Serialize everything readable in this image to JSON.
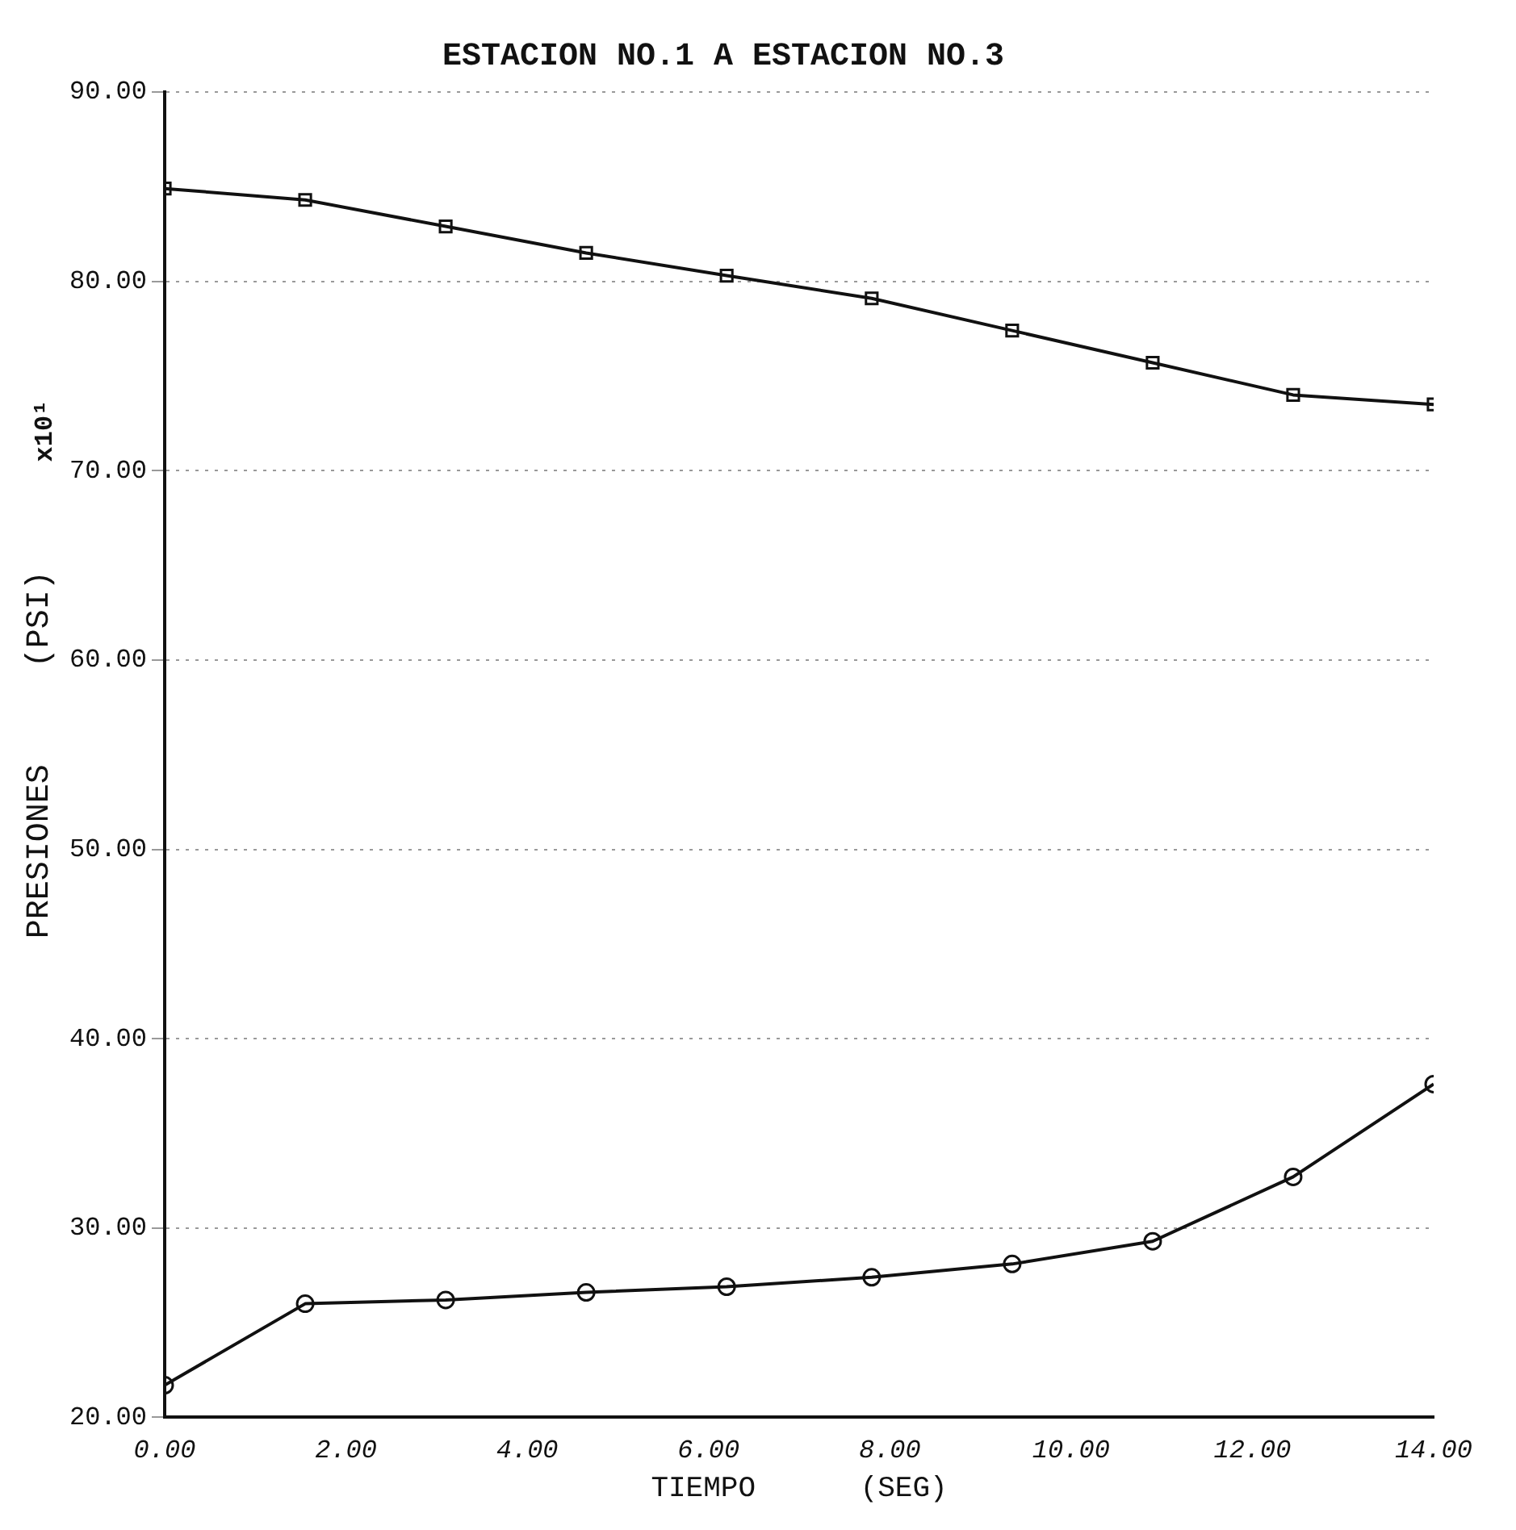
{
  "chart_data": {
    "type": "line",
    "title": "ESTACION NO.1 A ESTACION NO.3",
    "xlabel": "TIEMPO      (SEG)",
    "ylabel": "PRESIONES     (PSI)",
    "annotations": [
      "x10¹"
    ],
    "x": [
      0,
      1.55,
      3.1,
      4.65,
      6.2,
      7.8,
      9.35,
      10.9,
      12.45,
      14
    ],
    "series": [
      {
        "color": "#111111",
        "marker": "square",
        "values": [
          84.9,
          84.3,
          82.9,
          81.5,
          80.3,
          79.1,
          77.4,
          75.7,
          74.0,
          73.5
        ]
      },
      {
        "color": "#111111",
        "marker": "circle",
        "values": [
          21.7,
          26.0,
          26.2,
          26.6,
          26.9,
          27.4,
          28.1,
          29.3,
          32.7,
          37.6
        ]
      }
    ],
    "xlim": [
      0,
      14
    ],
    "xticks": [
      {
        "value": 0,
        "label": "0.00"
      },
      {
        "value": 2,
        "label": "2.00"
      },
      {
        "value": 4,
        "label": "4.00"
      },
      {
        "value": 6,
        "label": "6.00"
      },
      {
        "value": 8,
        "label": "8.00"
      },
      {
        "value": 10,
        "label": "10.00"
      },
      {
        "value": 12,
        "label": "12.00"
      },
      {
        "value": 14,
        "label": "14.00"
      }
    ],
    "ylim": [
      20,
      90
    ],
    "yticks": [
      {
        "value": 20,
        "label": "20.00"
      },
      {
        "value": 30,
        "label": "30.00"
      },
      {
        "value": 40,
        "label": "40.00"
      },
      {
        "value": 50,
        "label": "50.00"
      },
      {
        "value": 60,
        "label": "60.00"
      },
      {
        "value": 70,
        "label": "70.00"
      },
      {
        "value": 80,
        "label": "80.00"
      },
      {
        "value": 90,
        "label": "90.00"
      }
    ],
    "grid": "y",
    "line_style": "solid",
    "legend": false
  }
}
